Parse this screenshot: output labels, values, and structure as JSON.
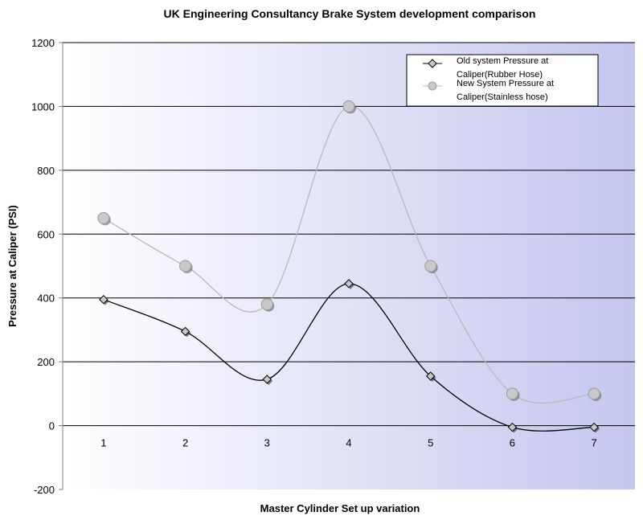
{
  "chart_data": {
    "type": "line",
    "title": "UK Engineering Consultancy Brake System development comparison",
    "xlabel": "Master Cylinder Set up variation",
    "ylabel": "Pressure at Caliper (PSI)",
    "categories": [
      "1",
      "2",
      "3",
      "4",
      "5",
      "6",
      "7"
    ],
    "ylim": [
      -200,
      1200
    ],
    "yticks": [
      "-200",
      "0",
      "200",
      "400",
      "600",
      "800",
      "1000",
      "1200"
    ],
    "smooth": true,
    "grid": "horizontal",
    "legend_position": "top-right",
    "series": [
      {
        "name_lines": [
          "Old system Pressure at",
          "Caliper(Rubber Hose)"
        ],
        "values": [
          395,
          295,
          145,
          445,
          155,
          -5,
          -5
        ],
        "color": "#000000",
        "marker": "diamond"
      },
      {
        "name_lines": [
          "New System Pressure at",
          "Caliper(Stainless hose)"
        ],
        "values": [
          650,
          500,
          380,
          1000,
          500,
          100,
          100
        ],
        "color": "#b8b8b8",
        "marker": "circle"
      }
    ],
    "plot_background": [
      "#ffffff",
      "#c4c6ee"
    ]
  }
}
